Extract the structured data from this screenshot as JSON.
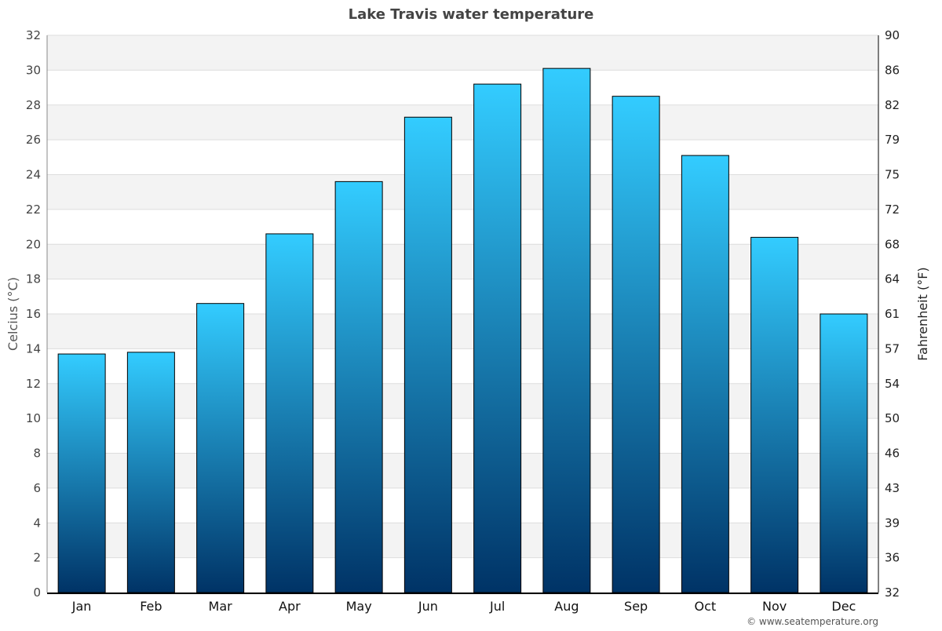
{
  "chart_data": {
    "type": "bar",
    "title": "Lake Travis water temperature",
    "ylabel": "Celcius (°C)",
    "ylabel_right": "Fahrenheit (°F)",
    "xlabel": "",
    "ylim": [
      0,
      32
    ],
    "yticks": [
      0,
      2,
      4,
      6,
      8,
      10,
      12,
      14,
      16,
      18,
      20,
      22,
      24,
      26,
      28,
      30,
      32
    ],
    "yticks_right": [
      "32",
      "36",
      "39",
      "43",
      "46",
      "50",
      "54",
      "57",
      "61",
      "64",
      "68",
      "72",
      "75",
      "79",
      "82",
      "86",
      "90"
    ],
    "categories": [
      "Jan",
      "Feb",
      "Mar",
      "Apr",
      "May",
      "Jun",
      "Jul",
      "Aug",
      "Sep",
      "Oct",
      "Nov",
      "Dec"
    ],
    "values": [
      13.7,
      13.8,
      16.6,
      20.6,
      23.6,
      27.3,
      29.2,
      30.1,
      28.5,
      25.1,
      20.4,
      16.0
    ],
    "grid": true,
    "colors": {
      "bar_top": "#33ccff",
      "bar_bottom": "#003366",
      "band": "#f3f3f3",
      "grid": "#dddddd"
    },
    "credit": "© www.seatemperature.org"
  }
}
